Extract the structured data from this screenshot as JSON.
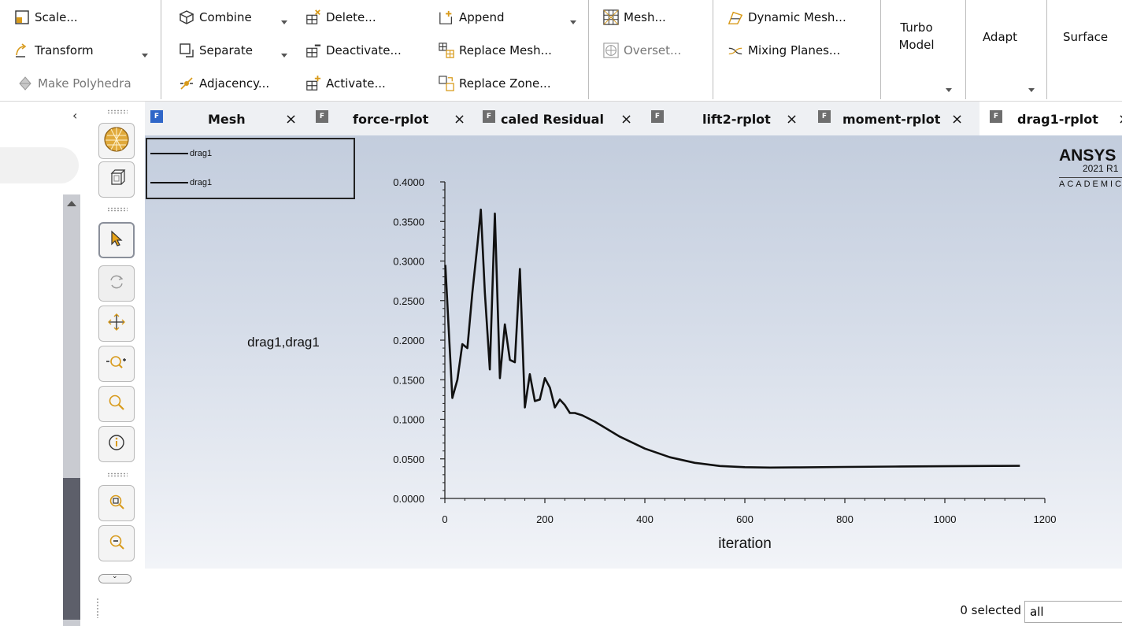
{
  "ribbon": {
    "group1": {
      "scale": "Scale...",
      "transform": "Transform",
      "make_polyhedra": "Make Polyhedra"
    },
    "group2": {
      "combine": "Combine",
      "separate": "Separate",
      "adjacency": "Adjacency...",
      "delete": "Delete...",
      "deactivate": "Deactivate...",
      "activate": "Activate..."
    },
    "group3": {
      "append": "Append",
      "replace_mesh": "Replace Mesh...",
      "replace_zone": "Replace Zone..."
    },
    "group4": {
      "mesh": "Mesh...",
      "overset": "Overset..."
    },
    "group5": {
      "dynamic_mesh": "Dynamic Mesh...",
      "mixing_planes": "Mixing Planes..."
    },
    "turbo_model_line1": "Turbo",
    "turbo_model_line2": "Model",
    "adapt": "Adapt",
    "surface": "Surface"
  },
  "tabs": [
    {
      "label": "Mesh",
      "close": "×"
    },
    {
      "label": "force-rplot",
      "close": "×"
    },
    {
      "label": "caled Residual",
      "close": "×"
    },
    {
      "label": "lift2-rplot",
      "close": "×"
    },
    {
      "label": "moment-rplot",
      "close": "×"
    },
    {
      "label": "drag1-rplot",
      "close": "×"
    }
  ],
  "tab_icon_letter": "F",
  "legend": [
    "drag1",
    "drag1"
  ],
  "logo": {
    "brand": "ANSYS",
    "version": "2021 R1",
    "edition": "ACADEMIC"
  },
  "chart_data": {
    "type": "line",
    "ylabel": "drag1,drag1",
    "xlabel": "iteration",
    "xlim": [
      0,
      1200
    ],
    "ylim": [
      0,
      0.4
    ],
    "xticks": [
      "0",
      "200",
      "400",
      "600",
      "800",
      "1000",
      "1200"
    ],
    "yticks": [
      "0.0000",
      "0.0500",
      "0.1000",
      "0.1500",
      "0.2000",
      "0.2500",
      "0.3000",
      "0.3500",
      "0.4000"
    ],
    "series": [
      {
        "name": "drag1",
        "x": [
          1,
          15,
          25,
          35,
          45,
          55,
          65,
          72,
          80,
          90,
          100,
          110,
          120,
          130,
          140,
          150,
          160,
          170,
          180,
          190,
          200,
          210,
          220,
          230,
          240,
          250,
          260,
          275,
          300,
          350,
          400,
          450,
          500,
          550,
          600,
          650,
          700,
          800,
          900,
          1000,
          1100,
          1150
        ],
        "y": [
          0.295,
          0.127,
          0.15,
          0.195,
          0.19,
          0.26,
          0.32,
          0.365,
          0.26,
          0.163,
          0.36,
          0.152,
          0.22,
          0.175,
          0.172,
          0.29,
          0.115,
          0.157,
          0.123,
          0.125,
          0.152,
          0.14,
          0.115,
          0.125,
          0.118,
          0.108,
          0.108,
          0.105,
          0.097,
          0.078,
          0.063,
          0.052,
          0.045,
          0.041,
          0.0395,
          0.039,
          0.0392,
          0.0398,
          0.0403,
          0.0407,
          0.0411,
          0.0412
        ]
      }
    ]
  },
  "selection": {
    "count": "0 selected",
    "value": "all"
  }
}
